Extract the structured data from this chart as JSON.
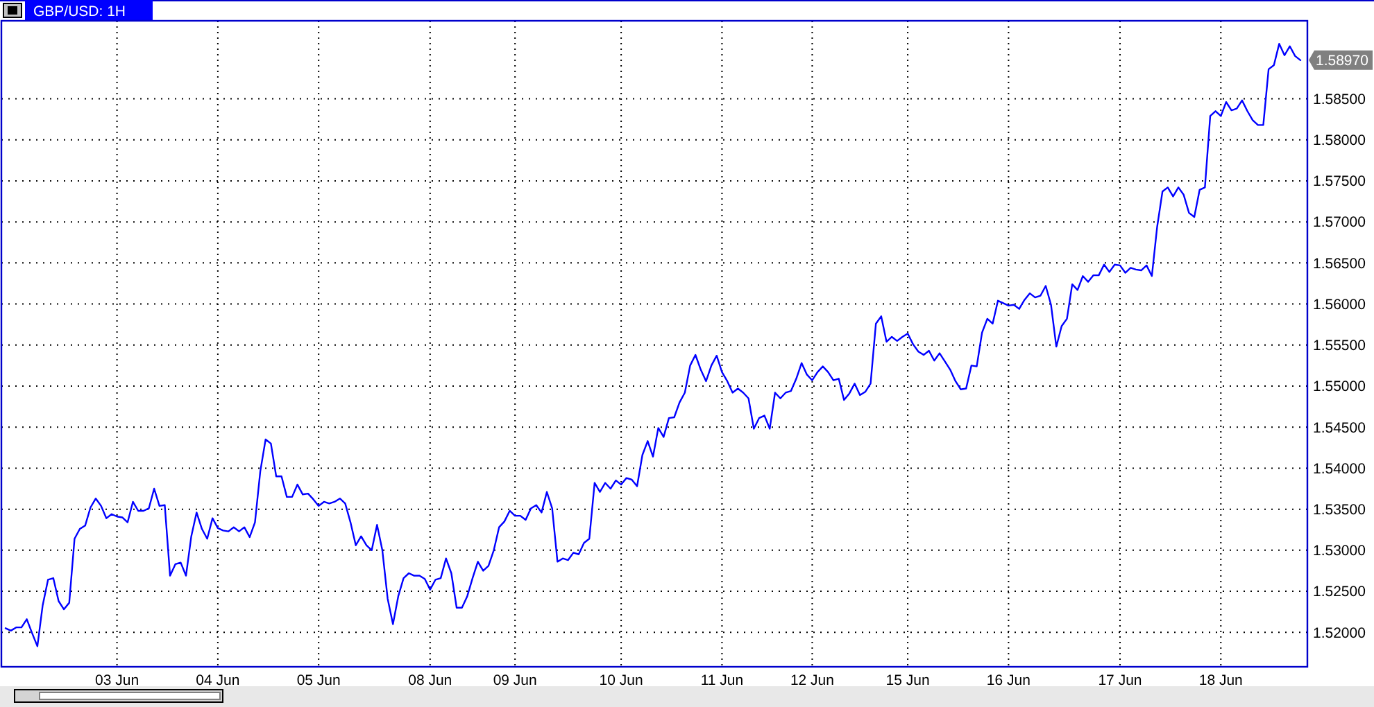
{
  "chart_data": {
    "type": "line",
    "title": "GBP/USD: 1H",
    "categories": [
      null,
      null,
      null,
      null,
      null,
      null,
      null,
      null,
      null,
      null,
      null,
      null,
      null,
      null,
      null,
      null,
      null,
      null,
      null,
      null,
      null,
      "03 Jun",
      null,
      null,
      null,
      null,
      null,
      null,
      null,
      null,
      null,
      null,
      null,
      null,
      null,
      null,
      null,
      null,
      null,
      null,
      "04 Jun",
      null,
      null,
      null,
      null,
      null,
      null,
      null,
      null,
      null,
      null,
      null,
      null,
      null,
      null,
      null,
      null,
      null,
      null,
      "05 Jun",
      null,
      null,
      null,
      null,
      null,
      null,
      null,
      null,
      null,
      null,
      null,
      null,
      null,
      null,
      null,
      null,
      null,
      null,
      null,
      null,
      "08 Jun",
      null,
      null,
      null,
      null,
      null,
      null,
      null,
      null,
      null,
      null,
      null,
      null,
      null,
      null,
      null,
      "09 Jun",
      null,
      null,
      null,
      null,
      null,
      null,
      null,
      null,
      null,
      null,
      null,
      null,
      null,
      null,
      null,
      null,
      null,
      null,
      null,
      "10 Jun",
      null,
      null,
      null,
      null,
      null,
      null,
      null,
      null,
      null,
      null,
      null,
      null,
      null,
      null,
      null,
      null,
      null,
      null,
      "11 Jun",
      null,
      null,
      null,
      null,
      null,
      null,
      null,
      null,
      null,
      null,
      null,
      null,
      null,
      null,
      null,
      null,
      "12 Jun",
      null,
      null,
      null,
      null,
      null,
      null,
      null,
      null,
      null,
      null,
      null,
      null,
      null,
      null,
      null,
      null,
      null,
      "15 Jun",
      null,
      null,
      null,
      null,
      null,
      null,
      null,
      null,
      null,
      null,
      null,
      null,
      null,
      null,
      null,
      null,
      null,
      null,
      "16 Jun",
      null,
      null,
      null,
      null,
      null,
      null,
      null,
      null,
      null,
      null,
      null,
      null,
      null,
      null,
      null,
      null,
      null,
      null,
      null,
      null,
      "17 Jun",
      null,
      null,
      null,
      null,
      null,
      null,
      null,
      null,
      null,
      null,
      null,
      null,
      null,
      null,
      null,
      null,
      null,
      null,
      "18 Jun",
      null,
      null,
      null,
      null,
      null,
      null,
      null,
      null,
      null,
      null,
      null,
      null,
      null,
      null,
      null
    ],
    "series": [
      {
        "color": "#0000ff",
        "values": [
          1.5205,
          1.5202,
          1.5206,
          1.5206,
          1.5216,
          1.5199,
          1.5183,
          1.5233,
          1.5264,
          1.5266,
          1.5238,
          1.5228,
          1.5236,
          1.5314,
          1.5326,
          1.533,
          1.5352,
          1.5363,
          1.5354,
          1.5339,
          1.5344,
          1.5341,
          1.534,
          1.5334,
          1.5359,
          1.5348,
          1.5348,
          1.5351,
          1.5375,
          1.5354,
          1.5355,
          1.5269,
          1.5283,
          1.5285,
          1.5269,
          1.5317,
          1.5346,
          1.5326,
          1.5314,
          1.5339,
          1.5327,
          1.5324,
          1.5323,
          1.5328,
          1.5323,
          1.5328,
          1.5316,
          1.5334,
          1.5396,
          1.5435,
          1.543,
          1.539,
          1.539,
          1.5365,
          1.5365,
          1.538,
          1.5368,
          1.5369,
          1.5362,
          1.5354,
          1.5359,
          1.5357,
          1.5359,
          1.5363,
          1.5357,
          1.5334,
          1.5306,
          1.5317,
          1.5306,
          1.53,
          1.5331,
          1.53,
          1.5241,
          1.521,
          1.5244,
          1.5266,
          1.5272,
          1.5269,
          1.5269,
          1.5265,
          1.5252,
          1.5264,
          1.5266,
          1.529,
          1.5272,
          1.523,
          1.523,
          1.5244,
          1.5266,
          1.5286,
          1.5275,
          1.5281,
          1.53,
          1.5328,
          1.5335,
          1.5348,
          1.5342,
          1.5342,
          1.5337,
          1.5351,
          1.5355,
          1.5346,
          1.5371,
          1.5351,
          1.5286,
          1.529,
          1.5288,
          1.5297,
          1.5295,
          1.5309,
          1.5314,
          1.5382,
          1.5371,
          1.5382,
          1.5375,
          1.5385,
          1.538,
          1.5388,
          1.5386,
          1.5378,
          1.5416,
          1.5433,
          1.5414,
          1.5449,
          1.5438,
          1.5461,
          1.5462,
          1.548,
          1.5492,
          1.5525,
          1.5538,
          1.552,
          1.5506,
          1.5525,
          1.5537,
          1.5517,
          1.5506,
          1.5492,
          1.5497,
          1.5492,
          1.5485,
          1.5448,
          1.5461,
          1.5464,
          1.5448,
          1.5492,
          1.5485,
          1.5492,
          1.5494,
          1.5509,
          1.5528,
          1.5514,
          1.5507,
          1.5517,
          1.5524,
          1.5517,
          1.5507,
          1.5509,
          1.5483,
          1.5491,
          1.5503,
          1.5489,
          1.5493,
          1.5503,
          1.5576,
          1.5585,
          1.5554,
          1.556,
          1.5555,
          1.556,
          1.5564,
          1.5551,
          1.5542,
          1.5538,
          1.5543,
          1.5531,
          1.554,
          1.553,
          1.552,
          1.5506,
          1.5496,
          1.5497,
          1.5525,
          1.5524,
          1.5565,
          1.5582,
          1.5576,
          1.5604,
          1.5601,
          1.5598,
          1.5599,
          1.5594,
          1.5605,
          1.5613,
          1.5608,
          1.561,
          1.5622,
          1.5599,
          1.5548,
          1.5573,
          1.5582,
          1.5624,
          1.5617,
          1.5634,
          1.5627,
          1.5635,
          1.5635,
          1.5648,
          1.5639,
          1.5648,
          1.5647,
          1.5638,
          1.5644,
          1.5642,
          1.5641,
          1.5647,
          1.5634,
          1.5694,
          1.5737,
          1.5742,
          1.5731,
          1.5742,
          1.5733,
          1.5711,
          1.5706,
          1.5739,
          1.5742,
          1.5829,
          1.5835,
          1.5829,
          1.5846,
          1.5836,
          1.5838,
          1.5848,
          1.5835,
          1.5824,
          1.5818,
          1.5818,
          1.5886,
          1.5891,
          1.5917,
          1.5903,
          1.5914,
          1.5902,
          1.5897
        ]
      }
    ],
    "ylim": [
      1.5158,
      1.5945
    ],
    "yticks": [
      {
        "value": 1.52,
        "label": "1.52000"
      },
      {
        "value": 1.525,
        "label": "1.52500"
      },
      {
        "value": 1.53,
        "label": "1.53000"
      },
      {
        "value": 1.535,
        "label": "1.53500"
      },
      {
        "value": 1.54,
        "label": "1.54000"
      },
      {
        "value": 1.545,
        "label": "1.54500"
      },
      {
        "value": 1.55,
        "label": "1.55000"
      },
      {
        "value": 1.555,
        "label": "1.55500"
      },
      {
        "value": 1.56,
        "label": "1.56000"
      },
      {
        "value": 1.565,
        "label": "1.56500"
      },
      {
        "value": 1.57,
        "label": "1.57000"
      },
      {
        "value": 1.575,
        "label": "1.57500"
      },
      {
        "value": 1.58,
        "label": "1.58000"
      },
      {
        "value": 1.585,
        "label": "1.58500"
      }
    ],
    "annotations": [
      "1.58970"
    ],
    "grid": true,
    "line_style": "solid",
    "marker": "none"
  }
}
